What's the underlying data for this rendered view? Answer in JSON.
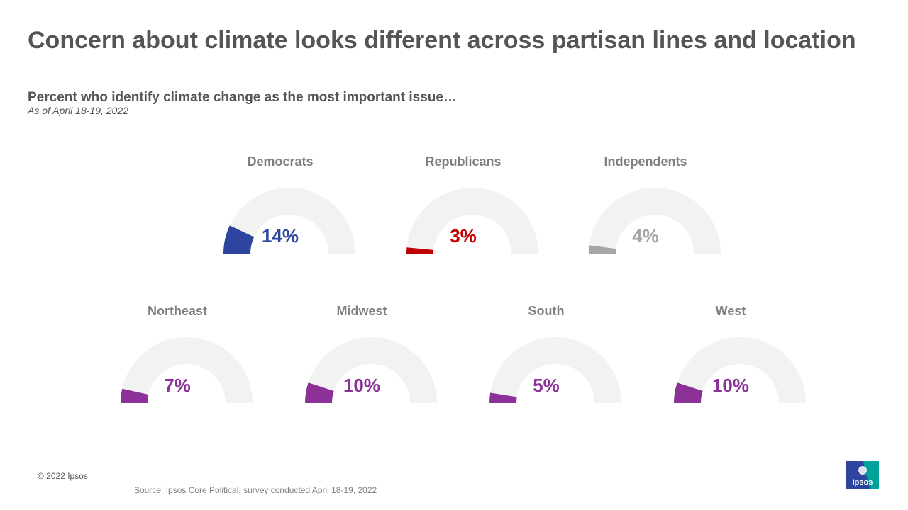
{
  "title": "Concern about climate looks different across partisan lines and location",
  "subtitle": "Percent who identify climate change as the most important issue…",
  "as_of": "As of April 18-19, 2022",
  "copyright": "© 2022 Ipsos",
  "source": "Source: Ipsos Core Political, survey conducted April 18-19, 2022",
  "logo_text": "Ipsos",
  "colors": {
    "track": "#f2f2f2",
    "democrats": "#2e45a0",
    "republicans": "#c00000",
    "independents": "#a6a6a6",
    "regions": "#8b3197",
    "label": "#7f7f7f",
    "logo_blue": "#2e45a0",
    "logo_teal": "#00a19a"
  },
  "chart_data": {
    "type": "gauge",
    "unit": "%",
    "max": 100,
    "gauges": [
      {
        "label": "Democrats",
        "value": 14,
        "display": "14%",
        "color": "#2e45a0"
      },
      {
        "label": "Republicans",
        "value": 3,
        "display": "3%",
        "color": "#c00000"
      },
      {
        "label": "Independents",
        "value": 4,
        "display": "4%",
        "color": "#a6a6a6"
      },
      {
        "label": "Northeast",
        "value": 7,
        "display": "7%",
        "color": "#8b3197"
      },
      {
        "label": "Midwest",
        "value": 10,
        "display": "10%",
        "color": "#8b3197"
      },
      {
        "label": "South",
        "value": 5,
        "display": "5%",
        "color": "#8b3197"
      },
      {
        "label": "West",
        "value": 10,
        "display": "10%",
        "color": "#8b3197"
      }
    ]
  }
}
